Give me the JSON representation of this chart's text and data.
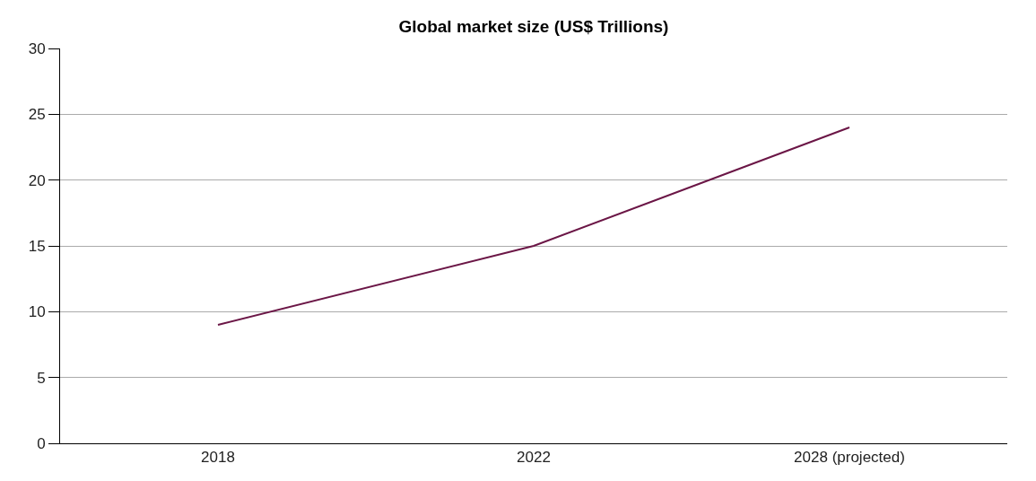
{
  "chart_data": {
    "type": "line",
    "title": "Global market size (US$ Trillions)",
    "categories": [
      "2018",
      "2022",
      "2028 (projected)"
    ],
    "series": [
      {
        "color": "#6b1646",
        "values": [
          9,
          15,
          24
        ]
      }
    ],
    "ylim": [
      0,
      30
    ],
    "yticks": [
      0,
      5,
      10,
      15,
      20,
      25,
      30
    ],
    "grid": "y",
    "marker": "none",
    "line_style": "solid"
  }
}
